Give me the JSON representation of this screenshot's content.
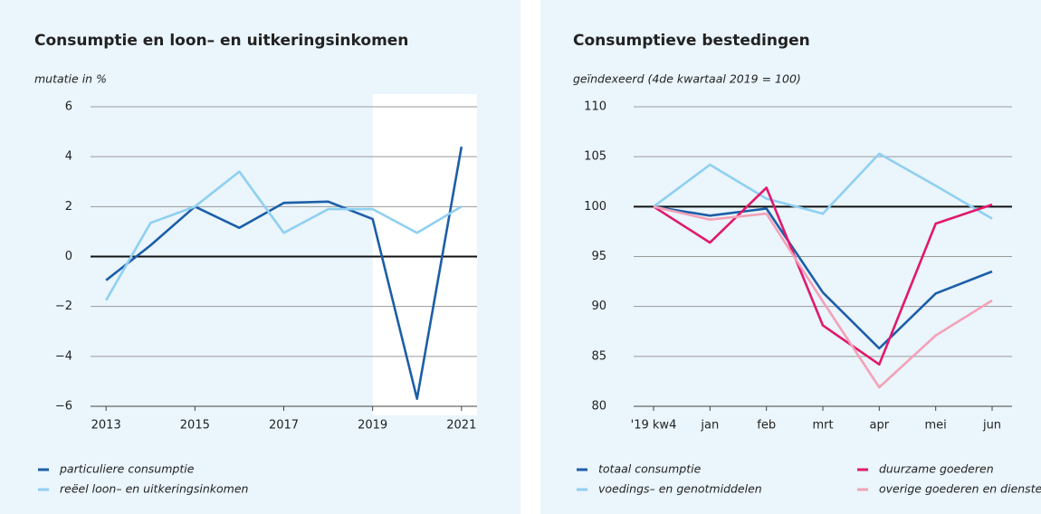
{
  "chart_data": [
    {
      "type": "line",
      "title": "Consumptie en loon– en uitkeringsinkomen",
      "y_label": "mutatie in %",
      "x": [
        2013,
        2014,
        2015,
        2016,
        2017,
        2018,
        2019,
        2020,
        2021
      ],
      "xlim": [
        2012.65,
        2021.35
      ],
      "xticks": [
        2013,
        2015,
        2017,
        2019,
        2021
      ],
      "ylim": [
        -6,
        6
      ],
      "yticks": [
        {
          "value": -6,
          "label": "−6"
        },
        {
          "value": -4,
          "label": "−4"
        },
        {
          "value": -2,
          "label": "−2"
        },
        0,
        2,
        4,
        6
      ],
      "grid": true,
      "reference_line": 0,
      "shade_from": 2019,
      "series": [
        {
          "name": "particuliere consumptie",
          "color": "#1d5ea8",
          "values": [
            -0.95,
            0.45,
            2.0,
            1.15,
            2.15,
            2.2,
            1.5,
            -5.7,
            4.4
          ]
        },
        {
          "name": "reëel loon– en uitkeringsinkomen",
          "color": "#8fd0f2",
          "values": [
            -1.75,
            1.35,
            2.0,
            3.4,
            0.95,
            1.9,
            1.9,
            0.95,
            2.0
          ]
        }
      ]
    },
    {
      "type": "line",
      "title": "Consumptieve bestedingen",
      "y_label": "geïndexeerd (4de kwartaal 2019 = 100)",
      "categories": [
        "'19 kw4",
        "jan",
        "feb",
        "mrt",
        "apr",
        "mei",
        "jun"
      ],
      "ylim": [
        80,
        110
      ],
      "yticks": [
        80,
        85,
        90,
        95,
        100,
        105,
        110
      ],
      "grid": true,
      "reference_line": 100,
      "series": [
        {
          "name": "totaal consumptie",
          "color": "#1d5ea8",
          "values": [
            100,
            99.1,
            99.8,
            91.4,
            85.8,
            91.3,
            93.5
          ]
        },
        {
          "name": "voedings– en genotmiddelen",
          "color": "#8fd0f2",
          "values": [
            100,
            104.2,
            100.8,
            99.3,
            105.3,
            102.1,
            98.8
          ]
        },
        {
          "name": "duurzame goederen",
          "color": "#e0196c",
          "values": [
            100,
            96.4,
            101.9,
            88.1,
            84.2,
            98.3,
            100.2
          ]
        },
        {
          "name": "overige goederen en diensten",
          "color": "#f4a1b8",
          "values": [
            100,
            98.7,
            99.3,
            90.5,
            81.9,
            87.1,
            90.6
          ]
        }
      ]
    }
  ]
}
